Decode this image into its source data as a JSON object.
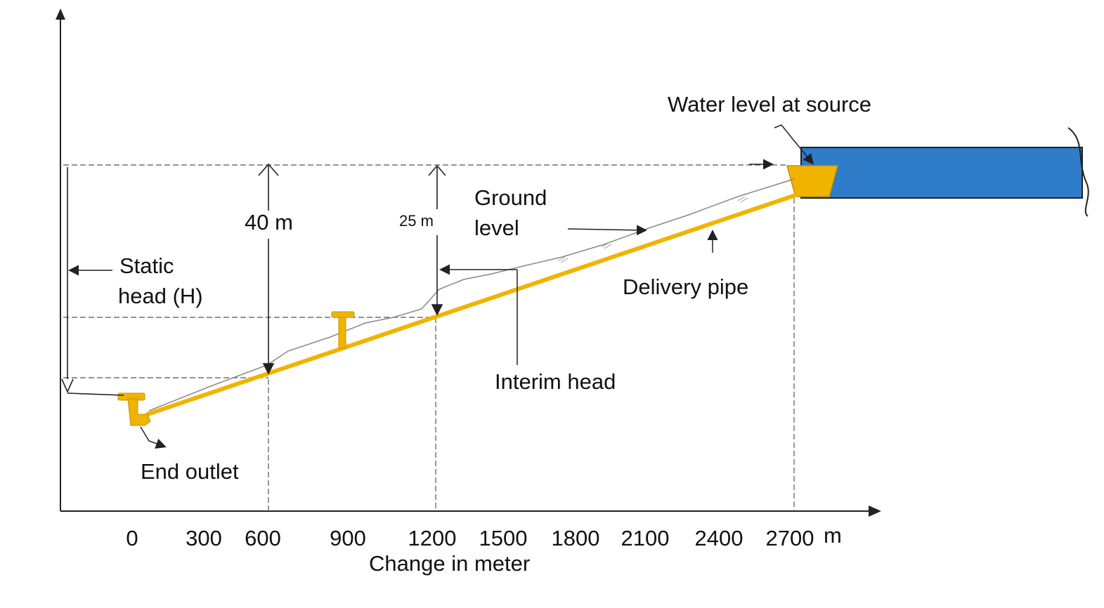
{
  "labels": {
    "water_level": "Water level at source",
    "ground_level_1": "Ground",
    "ground_level_2": "level",
    "static_head_1": "Static",
    "static_head_2": "head (H)",
    "height_40": "40 m",
    "height_25": "25 m",
    "delivery_pipe": "Delivery pipe",
    "interim_head": "Interim head",
    "end_outlet": "End outlet",
    "x_axis_title": "Change in meter",
    "x_unit": "m"
  },
  "x_ticks": [
    "0",
    "300",
    "600",
    "900",
    "1200",
    "1500",
    "1800",
    "2100",
    "2400",
    "2700"
  ],
  "colors": {
    "pipe": "#f0b400",
    "water": "#2f7cc8",
    "line": "#222222",
    "dashed": "#555555",
    "ground": "#888888"
  }
}
